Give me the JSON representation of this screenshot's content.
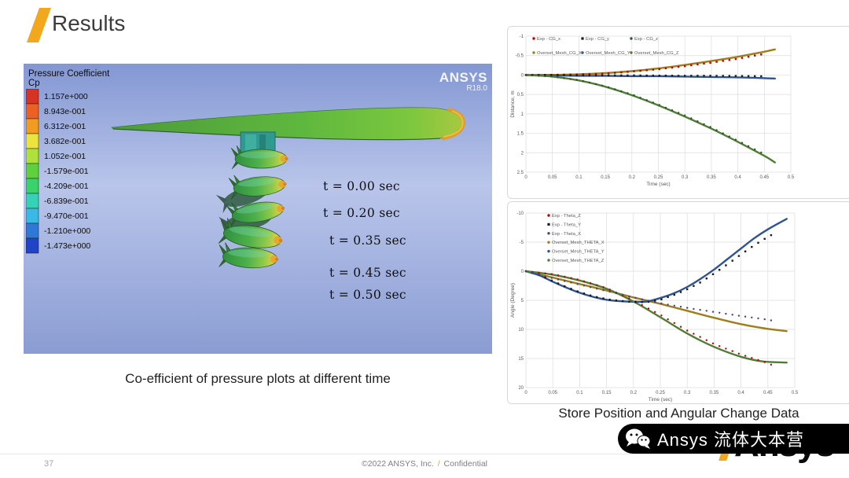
{
  "slide": {
    "title": "Results",
    "page_number": "37",
    "footer": {
      "copyright": "©2022 ANSYS, Inc.",
      "slash": "/",
      "confidential": "Confidential"
    },
    "captions": {
      "left": "Co-efficient of pressure plots at different time",
      "right": "Store Position and Angular Change Data"
    },
    "watermark": {
      "brand": "Ansys",
      "cjk": "流体大本营",
      "logo_text": "Ansys"
    }
  },
  "cfd": {
    "legend_title_line1": "Pressure Coefficient",
    "legend_title_line2": "Cp",
    "colorbar": {
      "labels": [
        "1.157e+000",
        "8.943e-001",
        "6.312e-001",
        "3.682e-001",
        "1.052e-001",
        "-1.579e-001",
        "-4.209e-001",
        "-6.839e-001",
        "-9.470e-001",
        "-1.210e+000",
        "-1.473e+000"
      ],
      "colors": [
        "#d63324",
        "#ec6123",
        "#f29b22",
        "#ece33e",
        "#b0e03c",
        "#5fd13c",
        "#3bd16b",
        "#36d2b8",
        "#3ab9e6",
        "#2f78d8",
        "#2043c8"
      ]
    },
    "viewport_logo": {
      "brand": "ANSYS",
      "version": "R18.0"
    },
    "time_labels": [
      "t = 0.00 sec",
      "t = 0.20 sec",
      "t = 0.35 sec",
      "t = 0.45 sec",
      "t = 0.50 sec"
    ]
  },
  "chart_data": [
    {
      "type": "line",
      "title": "",
      "xlabel": "Time (sec)",
      "ylabel": "Distance, m",
      "xlim": [
        0,
        0.5
      ],
      "ylim_top_to_bottom": [
        -1,
        2.5
      ],
      "xticks": [
        "0",
        "0.05",
        "0.1",
        "0.15",
        "0.2",
        "0.25",
        "0.3",
        "0.35",
        "0.4",
        "0.45",
        "0.5"
      ],
      "yticks": [
        "-1",
        "-0.5",
        "0",
        "0.5",
        "1",
        "1.5",
        "2",
        "2.5"
      ],
      "grid": true,
      "legend_position": "inside-top",
      "legend": [
        {
          "label": "Exp - CG_x",
          "color": "#C00000",
          "marker": "circle"
        },
        {
          "label": "Exp - CG_y",
          "color": "#1A1A1A",
          "marker": "square"
        },
        {
          "label": "Exp - CG_z",
          "color": "#2F5233",
          "marker": "circle"
        },
        {
          "label": "Overset_Mesh_CG_X",
          "color": "#9E7D1A",
          "marker": "circle"
        },
        {
          "label": "Overset_Mesh_CG_Y",
          "color": "#2E5395",
          "marker": "circle"
        },
        {
          "label": "Overset_Mesh_CG_Z",
          "color": "#4F7D33",
          "marker": "circle"
        }
      ],
      "series": [
        {
          "name": "Overset_Mesh_CG_X",
          "style": "line",
          "color": "#9E7D1A",
          "points": [
            [
              0,
              0
            ],
            [
              0.05,
              -0.005
            ],
            [
              0.1,
              -0.02
            ],
            [
              0.15,
              -0.05
            ],
            [
              0.2,
              -0.1
            ],
            [
              0.25,
              -0.17
            ],
            [
              0.3,
              -0.26
            ],
            [
              0.35,
              -0.36
            ],
            [
              0.4,
              -0.47
            ],
            [
              0.45,
              -0.6
            ],
            [
              0.47,
              -0.66
            ]
          ]
        },
        {
          "name": "Overset_Mesh_CG_Y",
          "style": "line",
          "color": "#2E5395",
          "points": [
            [
              0,
              0
            ],
            [
              0.05,
              0.01
            ],
            [
              0.1,
              0.02
            ],
            [
              0.15,
              0.02
            ],
            [
              0.2,
              0.03
            ],
            [
              0.25,
              0.03
            ],
            [
              0.3,
              0.04
            ],
            [
              0.35,
              0.05
            ],
            [
              0.4,
              0.06
            ],
            [
              0.45,
              0.08
            ],
            [
              0.47,
              0.09
            ]
          ]
        },
        {
          "name": "Overset_Mesh_CG_Z",
          "style": "line",
          "color": "#4F7D33",
          "points": [
            [
              0,
              0
            ],
            [
              0.05,
              0.04
            ],
            [
              0.1,
              0.14
            ],
            [
              0.15,
              0.3
            ],
            [
              0.2,
              0.52
            ],
            [
              0.25,
              0.78
            ],
            [
              0.3,
              1.07
            ],
            [
              0.35,
              1.38
            ],
            [
              0.4,
              1.72
            ],
            [
              0.45,
              2.08
            ],
            [
              0.47,
              2.25
            ]
          ]
        },
        {
          "name": "Exp - CG_x",
          "style": "dots",
          "marker": "square",
          "color": "#C00000",
          "points": [
            [
              0,
              0
            ],
            [
              0.05,
              -0.005
            ],
            [
              0.1,
              -0.015
            ],
            [
              0.15,
              -0.04
            ],
            [
              0.2,
              -0.09
            ],
            [
              0.25,
              -0.15
            ],
            [
              0.3,
              -0.23
            ],
            [
              0.35,
              -0.32
            ],
            [
              0.4,
              -0.42
            ],
            [
              0.44,
              -0.52
            ],
            [
              0.455,
              -0.55
            ]
          ]
        },
        {
          "name": "Exp - CG_y",
          "style": "dots",
          "marker": "square",
          "color": "#1A1A1A",
          "points": [
            [
              0,
              0
            ],
            [
              0.05,
              0
            ],
            [
              0.1,
              0.005
            ],
            [
              0.15,
              0.01
            ],
            [
              0.2,
              0.01
            ],
            [
              0.25,
              0.015
            ],
            [
              0.3,
              0.02
            ],
            [
              0.35,
              0.02
            ],
            [
              0.4,
              0.025
            ],
            [
              0.44,
              0.03
            ],
            [
              0.455,
              0.035
            ]
          ]
        },
        {
          "name": "Exp - CG_z",
          "style": "dots",
          "marker": "circle",
          "color": "#2F5233",
          "points": [
            [
              0,
              0
            ],
            [
              0.05,
              0.04
            ],
            [
              0.1,
              0.13
            ],
            [
              0.15,
              0.29
            ],
            [
              0.2,
              0.5
            ],
            [
              0.25,
              0.76
            ],
            [
              0.3,
              1.04
            ],
            [
              0.35,
              1.35
            ],
            [
              0.4,
              1.69
            ],
            [
              0.44,
              1.97
            ],
            [
              0.455,
              2.05
            ]
          ]
        }
      ]
    },
    {
      "type": "line",
      "title": "",
      "xlabel": "Time (sec)",
      "ylabel": "Angle (Degree)",
      "xlim": [
        0,
        0.5
      ],
      "ylim_top_to_bottom": [
        -10,
        20
      ],
      "xticks": [
        "0",
        "0.05",
        "0.1",
        "0.15",
        "0.2",
        "0.25",
        "0.3",
        "0.35",
        "0.4",
        "0.45",
        "0.5"
      ],
      "yticks": [
        "-10",
        "-5",
        "0",
        "5",
        "10",
        "15",
        "20"
      ],
      "grid": true,
      "legend_position": "inside-top-left",
      "legend": [
        {
          "label": "Exp - Theta_Z",
          "color": "#C00000",
          "marker": "circle"
        },
        {
          "label": "Exp - Theta_Y",
          "color": "#1A1A1A",
          "marker": "square"
        },
        {
          "label": "Exp - Theta_X",
          "color": "#4A3F8F",
          "marker": "circle"
        },
        {
          "label": "Overset_Mesh_THETA_X",
          "color": "#9E7D1A",
          "marker": "circle"
        },
        {
          "label": "Overset_Mesh_THETA_Y",
          "color": "#2E5395",
          "marker": "circle"
        },
        {
          "label": "Overset_Mesh_THETA_Z",
          "color": "#4F7D33",
          "marker": "circle"
        }
      ],
      "series": [
        {
          "name": "Overset_Mesh_THETA_X",
          "style": "line",
          "color": "#9E7D1A",
          "points": [
            [
              0,
              0
            ],
            [
              0.05,
              1.1
            ],
            [
              0.1,
              2.2
            ],
            [
              0.15,
              3.3
            ],
            [
              0.2,
              4.5
            ],
            [
              0.25,
              5.6
            ],
            [
              0.3,
              6.8
            ],
            [
              0.35,
              8.0
            ],
            [
              0.4,
              9.1
            ],
            [
              0.45,
              9.9
            ],
            [
              0.485,
              10.3
            ]
          ]
        },
        {
          "name": "Overset_Mesh_THETA_Y",
          "style": "line",
          "color": "#2E5395",
          "points": [
            [
              0,
              0
            ],
            [
              0.025,
              0.7
            ],
            [
              0.05,
              1.8
            ],
            [
              0.075,
              2.8
            ],
            [
              0.1,
              3.7
            ],
            [
              0.125,
              4.4
            ],
            [
              0.15,
              4.9
            ],
            [
              0.175,
              5.15
            ],
            [
              0.2,
              5.25
            ],
            [
              0.225,
              5.2
            ],
            [
              0.25,
              4.6
            ],
            [
              0.275,
              3.8
            ],
            [
              0.3,
              2.7
            ],
            [
              0.325,
              1.3
            ],
            [
              0.35,
              -0.3
            ],
            [
              0.375,
              -2.1
            ],
            [
              0.4,
              -3.9
            ],
            [
              0.425,
              -5.7
            ],
            [
              0.45,
              -7.2
            ],
            [
              0.485,
              -9.0
            ]
          ]
        },
        {
          "name": "Overset_Mesh_THETA_Z",
          "style": "line",
          "color": "#4F7D33",
          "points": [
            [
              0,
              0
            ],
            [
              0.05,
              0.6
            ],
            [
              0.1,
              1.6
            ],
            [
              0.15,
              3.0
            ],
            [
              0.2,
              5.2
            ],
            [
              0.25,
              7.9
            ],
            [
              0.3,
              10.7
            ],
            [
              0.35,
              13.0
            ],
            [
              0.4,
              14.7
            ],
            [
              0.44,
              15.5
            ],
            [
              0.485,
              15.7
            ]
          ]
        },
        {
          "name": "Exp - Theta_Z",
          "style": "dots",
          "marker": "circle",
          "color": "#C00000",
          "points": [
            [
              0,
              0
            ],
            [
              0.05,
              0.5
            ],
            [
              0.1,
              1.5
            ],
            [
              0.15,
              2.9
            ],
            [
              0.2,
              5.0
            ],
            [
              0.25,
              7.5
            ],
            [
              0.3,
              10.2
            ],
            [
              0.35,
              12.5
            ],
            [
              0.4,
              14.3
            ],
            [
              0.44,
              15.5
            ],
            [
              0.46,
              16.2
            ]
          ]
        },
        {
          "name": "Exp - Theta_Y",
          "style": "dots",
          "marker": "square",
          "color": "#1A1A1A",
          "points": [
            [
              0,
              0
            ],
            [
              0.025,
              0.6
            ],
            [
              0.05,
              1.7
            ],
            [
              0.075,
              2.7
            ],
            [
              0.1,
              3.6
            ],
            [
              0.125,
              4.3
            ],
            [
              0.15,
              4.8
            ],
            [
              0.175,
              5.1
            ],
            [
              0.2,
              5.3
            ],
            [
              0.225,
              5.3
            ],
            [
              0.25,
              4.9
            ],
            [
              0.275,
              4.1
            ],
            [
              0.3,
              3.1
            ],
            [
              0.325,
              1.9
            ],
            [
              0.35,
              0.4
            ],
            [
              0.375,
              -1.2
            ],
            [
              0.4,
              -2.9
            ],
            [
              0.425,
              -4.5
            ],
            [
              0.45,
              -5.9
            ],
            [
              0.46,
              -6.4
            ]
          ]
        },
        {
          "name": "Exp - Theta_X",
          "style": "dots",
          "marker": "circle",
          "color": "#4A3F8F",
          "points": [
            [
              0,
              0
            ],
            [
              0.05,
              1.2
            ],
            [
              0.1,
              2.3
            ],
            [
              0.15,
              3.4
            ],
            [
              0.2,
              4.5
            ],
            [
              0.25,
              5.5
            ],
            [
              0.3,
              6.3
            ],
            [
              0.35,
              7.0
            ],
            [
              0.4,
              7.7
            ],
            [
              0.44,
              8.2
            ],
            [
              0.46,
              8.5
            ]
          ]
        }
      ]
    }
  ]
}
